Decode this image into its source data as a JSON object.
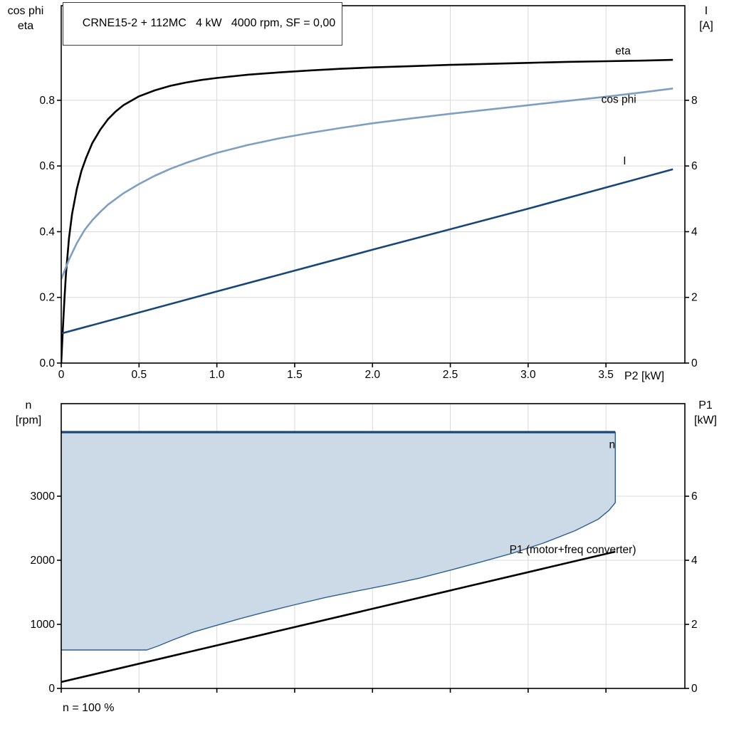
{
  "title_box": "CRNE15-2 + 112MC   4 kW   4000 rpm, SF = 0,00",
  "axis_corner_labels": {
    "top_left": [
      "cos phi",
      "eta"
    ],
    "top_right": [
      "I",
      "[A]"
    ],
    "bottom_left": [
      "n",
      "[rpm]"
    ],
    "bottom_right": [
      "P1",
      "[kW]"
    ]
  },
  "x_axis_label": "P2 [kW]",
  "footer_note": "n = 100 %",
  "colors": {
    "background": "#ffffff",
    "grid": "#d9d9d9",
    "frame": "#000000",
    "accent_blue": "#17477a",
    "light_blue": "#7f9fc1",
    "range_fill": "#ccd9e7",
    "range_edge": "#2e5f94"
  },
  "chart_data": [
    {
      "type": "line",
      "title": "CRNE15-2 + 112MC 4 kW 4000 rpm, SF = 0,00",
      "x_axis": {
        "label": "P2 [kW]",
        "min": 0,
        "max": 4.007,
        "ticks": [
          0,
          0.5,
          1,
          1.5,
          2,
          2.5,
          3,
          3.5
        ],
        "tick_labels": [
          "0",
          "0.5",
          "1.0",
          "1.5",
          "2.0",
          "2.5",
          "3.0",
          "3.5"
        ]
      },
      "y_left": {
        "label": "cos phi / eta",
        "min": 0,
        "max": 1.088,
        "ticks": [
          0,
          0.2,
          0.4,
          0.6,
          0.8
        ],
        "tick_labels": [
          "0.0",
          "0.2",
          "0.4",
          "0.6",
          "0.8"
        ]
      },
      "y_right": {
        "label": "I [A]",
        "min": 0,
        "max": 10.88,
        "ticks": [
          0,
          2,
          4,
          6,
          8
        ],
        "tick_labels": [
          "0",
          "2",
          "4",
          "6",
          "8"
        ]
      },
      "series": [
        {
          "name": "eta",
          "kind": "line",
          "axis": "left",
          "color": "#000000",
          "width": 2.6,
          "label": "eta",
          "label_pos": [
            3.56,
            0.94
          ],
          "label_color": "#000000",
          "points": [
            [
              0,
              0
            ],
            [
              0.01,
              0.1
            ],
            [
              0.02,
              0.19
            ],
            [
              0.03,
              0.27
            ],
            [
              0.05,
              0.38
            ],
            [
              0.07,
              0.455
            ],
            [
              0.1,
              0.53
            ],
            [
              0.13,
              0.585
            ],
            [
              0.16,
              0.625
            ],
            [
              0.2,
              0.67
            ],
            [
              0.25,
              0.71
            ],
            [
              0.3,
              0.742
            ],
            [
              0.35,
              0.766
            ],
            [
              0.4,
              0.785
            ],
            [
              0.5,
              0.812
            ],
            [
              0.6,
              0.83
            ],
            [
              0.7,
              0.844
            ],
            [
              0.8,
              0.854
            ],
            [
              0.9,
              0.862
            ],
            [
              1,
              0.868
            ],
            [
              1.2,
              0.878
            ],
            [
              1.4,
              0.885
            ],
            [
              1.6,
              0.891
            ],
            [
              1.8,
              0.896
            ],
            [
              2,
              0.9
            ],
            [
              2.25,
              0.904
            ],
            [
              2.5,
              0.908
            ],
            [
              2.75,
              0.911
            ],
            [
              3,
              0.914
            ],
            [
              3.25,
              0.917
            ],
            [
              3.5,
              0.919
            ],
            [
              3.75,
              0.921
            ],
            [
              3.93,
              0.923
            ]
          ]
        },
        {
          "name": "cos phi",
          "kind": "line",
          "axis": "left",
          "color": "#7f9fc1",
          "width": 2.6,
          "label": "cos phi",
          "label_pos": [
            3.47,
            0.792
          ],
          "points": [
            [
              0,
              0.255
            ],
            [
              0.05,
              0.315
            ],
            [
              0.1,
              0.365
            ],
            [
              0.15,
              0.405
            ],
            [
              0.2,
              0.435
            ],
            [
              0.25,
              0.46
            ],
            [
              0.3,
              0.482
            ],
            [
              0.4,
              0.517
            ],
            [
              0.5,
              0.545
            ],
            [
              0.6,
              0.57
            ],
            [
              0.7,
              0.591
            ],
            [
              0.8,
              0.609
            ],
            [
              0.9,
              0.625
            ],
            [
              1,
              0.64
            ],
            [
              1.2,
              0.664
            ],
            [
              1.4,
              0.684
            ],
            [
              1.6,
              0.701
            ],
            [
              1.8,
              0.716
            ],
            [
              2,
              0.73
            ],
            [
              2.25,
              0.745
            ],
            [
              2.5,
              0.759
            ],
            [
              2.75,
              0.772
            ],
            [
              3,
              0.785
            ],
            [
              3.25,
              0.798
            ],
            [
              3.5,
              0.811
            ],
            [
              3.75,
              0.825
            ],
            [
              3.93,
              0.836
            ]
          ]
        },
        {
          "name": "I",
          "kind": "line",
          "axis": "right",
          "color": "#17477a",
          "width": 2.6,
          "label": "I",
          "label_pos": [
            3.61,
            6.05
          ],
          "points": [
            [
              0,
              0.9
            ],
            [
              1,
              2.18
            ],
            [
              2,
              3.45
            ],
            [
              3,
              4.7
            ],
            [
              3.93,
              5.9
            ]
          ]
        }
      ]
    },
    {
      "type": "line",
      "title": "",
      "x_axis": {
        "label": "",
        "min": 0,
        "max": 4.007,
        "ticks": [
          0,
          0.5,
          1,
          1.5,
          2,
          2.5,
          3,
          3.5
        ],
        "tick_labels": []
      },
      "y_left": {
        "label": "n [rpm]",
        "min": 0,
        "max": 4444,
        "ticks": [
          0,
          1000,
          2000,
          3000
        ],
        "tick_labels": [
          "0",
          "1000",
          "2000",
          "3000"
        ]
      },
      "y_right": {
        "label": "P1 [kW]",
        "min": 0,
        "max": 8.889,
        "ticks": [
          0,
          2,
          4,
          6
        ],
        "tick_labels": [
          "0",
          "2",
          "4",
          "6"
        ]
      },
      "series": [
        {
          "name": "speed range",
          "kind": "area",
          "axis": "left",
          "fill": "#ccd9e7",
          "points": [
            [
              0,
              600
            ],
            [
              0.55,
              600
            ],
            [
              0.62,
              660
            ],
            [
              0.72,
              760
            ],
            [
              0.85,
              880
            ],
            [
              1,
              985
            ],
            [
              1.15,
              1090
            ],
            [
              1.3,
              1185
            ],
            [
              1.5,
              1305
            ],
            [
              1.7,
              1420
            ],
            [
              1.9,
              1520
            ],
            [
              2.1,
              1615
            ],
            [
              2.3,
              1720
            ],
            [
              2.5,
              1845
            ],
            [
              2.7,
              1975
            ],
            [
              2.9,
              2110
            ],
            [
              3.1,
              2270
            ],
            [
              3.3,
              2460
            ],
            [
              3.45,
              2640
            ],
            [
              3.52,
              2780
            ],
            [
              3.56,
              2900
            ],
            [
              3.56,
              4000
            ],
            [
              0,
              4000
            ]
          ]
        },
        {
          "name": "speed range edge",
          "kind": "line",
          "axis": "left",
          "color": "#2e5f94",
          "width": 1.4,
          "points": [
            [
              0,
              600
            ],
            [
              0.55,
              600
            ],
            [
              0.62,
              660
            ],
            [
              0.72,
              760
            ],
            [
              0.85,
              880
            ],
            [
              1,
              985
            ],
            [
              1.15,
              1090
            ],
            [
              1.3,
              1185
            ],
            [
              1.5,
              1305
            ],
            [
              1.7,
              1420
            ],
            [
              1.9,
              1520
            ],
            [
              2.1,
              1615
            ],
            [
              2.3,
              1720
            ],
            [
              2.5,
              1845
            ],
            [
              2.7,
              1975
            ],
            [
              2.9,
              2110
            ],
            [
              3.1,
              2270
            ],
            [
              3.3,
              2460
            ],
            [
              3.45,
              2640
            ],
            [
              3.52,
              2780
            ],
            [
              3.56,
              2900
            ],
            [
              3.56,
              4000
            ]
          ]
        },
        {
          "name": "n",
          "kind": "line",
          "axis": "left",
          "color": "#17477a",
          "width": 3.2,
          "label": "n",
          "label_pos": [
            3.52,
            3750
          ],
          "points": [
            [
              0,
              4000
            ],
            [
              3.56,
              4000
            ]
          ]
        },
        {
          "name": "P1",
          "kind": "line",
          "axis": "right",
          "color": "#000000",
          "width": 2.6,
          "label": "P1 (motor+freq converter)",
          "label_pos": [
            2.88,
            4.22
          ],
          "points": [
            [
              0,
              0.2
            ],
            [
              3.56,
              4.27
            ]
          ]
        }
      ]
    }
  ]
}
